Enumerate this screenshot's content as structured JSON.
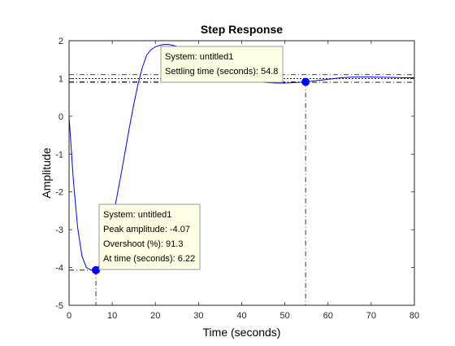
{
  "colors": {
    "response": "#0000ff",
    "datatip_fill": "#ffffe6",
    "datatip_edge": "#999999",
    "axes": "#262626",
    "guide": "#000000"
  },
  "chart_data": {
    "type": "line",
    "title": "Step Response",
    "xlabel": "Time (seconds)",
    "ylabel": "Amplitude",
    "xlim": [
      0,
      80
    ],
    "ylim": [
      -5,
      2
    ],
    "xticks": [
      0,
      10,
      20,
      30,
      40,
      50,
      60,
      70,
      80
    ],
    "yticks": [
      -5,
      -4,
      -3,
      -2,
      -1,
      0,
      1,
      2
    ],
    "grid": false,
    "legend": false,
    "series": [
      {
        "x": [
          0,
          1,
          2,
          3,
          4,
          5,
          6.22,
          7,
          8,
          9,
          10,
          11,
          12,
          13,
          14,
          15,
          16,
          17,
          18,
          19,
          20,
          21,
          22,
          23,
          24,
          25,
          26,
          27,
          28,
          29,
          30,
          32,
          34,
          36,
          38,
          40,
          42,
          44,
          46,
          48,
          50,
          52,
          54.8,
          57,
          60,
          63,
          66,
          70,
          74,
          78,
          80
        ],
        "y": [
          0,
          -1.7,
          -2.95,
          -3.7,
          -4.0,
          -4.06,
          -4.07,
          -3.95,
          -3.66,
          -3.25,
          -2.75,
          -2.18,
          -1.56,
          -0.92,
          -0.28,
          0.32,
          0.86,
          1.3,
          1.62,
          1.76,
          1.84,
          1.88,
          1.9,
          1.9,
          1.88,
          1.85,
          1.82,
          1.78,
          1.72,
          1.65,
          1.58,
          1.43,
          1.3,
          1.18,
          1.08,
          1.0,
          0.95,
          0.91,
          0.89,
          0.88,
          0.88,
          0.89,
          0.91,
          0.94,
          0.98,
          1.02,
          1.04,
          1.04,
          1.03,
          1.02,
          1.02
        ]
      }
    ],
    "settling_band": [
      0.9,
      1.1
    ],
    "final_value": 1.0,
    "markers": [
      {
        "x": 6.22,
        "y": -4.07
      },
      {
        "x": 54.8,
        "y": 0.91
      }
    ],
    "datatips": [
      {
        "lines": [
          "System: untitled1",
          "Peak amplitude: -4.07",
          "Overshoot (%): 91.3",
          "At time (seconds): 6.22"
        ]
      },
      {
        "lines": [
          "System: untitled1",
          "Settling time (seconds): 54.8"
        ]
      }
    ]
  }
}
